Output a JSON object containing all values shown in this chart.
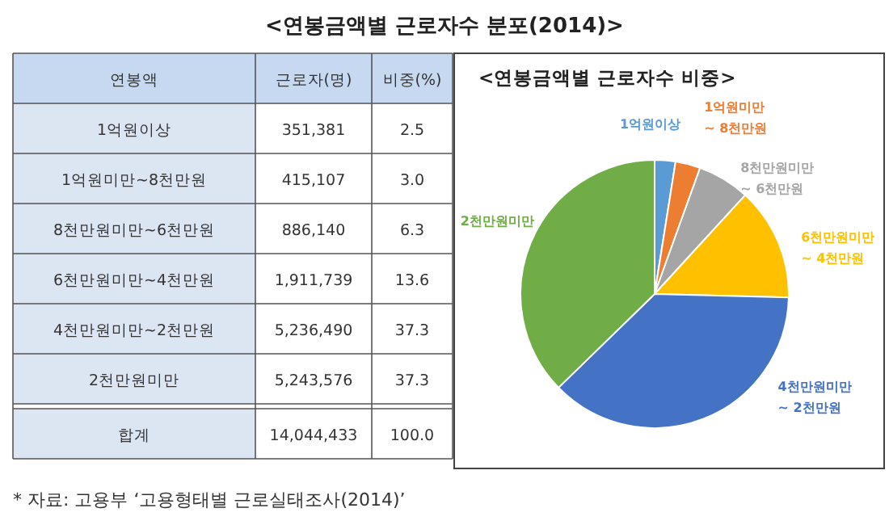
{
  "chart_data": [
    {
      "type": "other",
      "title": "<연봉금액별 근로자수 분포(2014)>",
      "ylabel": "연봉액",
      "categories": [
        "1억원이상",
        "1억원미만~8천만원",
        "8천만원미만~6천만원",
        "6천만원미만~4천만원",
        "4천만원미만~2천만원",
        "2천만원미만",
        "합계"
      ],
      "series": [
        {
          "name": "근로자(명)",
          "values": [
            351381,
            415107,
            886140,
            1911739,
            5236490,
            5243576,
            14044433
          ],
          "value_labels": [
            "351,381",
            "415,107",
            "886,140",
            "1,911,739",
            "5,236,490",
            "5,243,576",
            "14,044,433"
          ]
        },
        {
          "name": "비중(%)",
          "values": [
            2.5,
            3.0,
            6.3,
            13.6,
            37.3,
            37.3,
            100.0
          ],
          "value_labels": [
            "2.5",
            "3.0",
            "6.3",
            "13.6",
            "37.3",
            "37.3",
            "100.0"
          ]
        }
      ],
      "annotations": [
        "* 자료: 고용부 ‘고용형태별 근로실태조사(2014)’"
      ]
    },
    {
      "type": "pie",
      "title": "<연봉금액별 근로자수 비중>",
      "categories": [
        "1억원이상",
        "1억원미만 ~ 8천만원",
        "8천만원미만 ~ 6천만원",
        "6천만원미만 ~ 4천만원",
        "4천만원미만 ~ 2천만원",
        "2천만원미만"
      ],
      "values": [
        2.5,
        3.0,
        6.3,
        13.6,
        37.3,
        37.3
      ],
      "colors": [
        "#5b9bd5",
        "#ed7d31",
        "#a5a5a5",
        "#ffc000",
        "#4472c4",
        "#70ad47"
      ]
    }
  ]
}
